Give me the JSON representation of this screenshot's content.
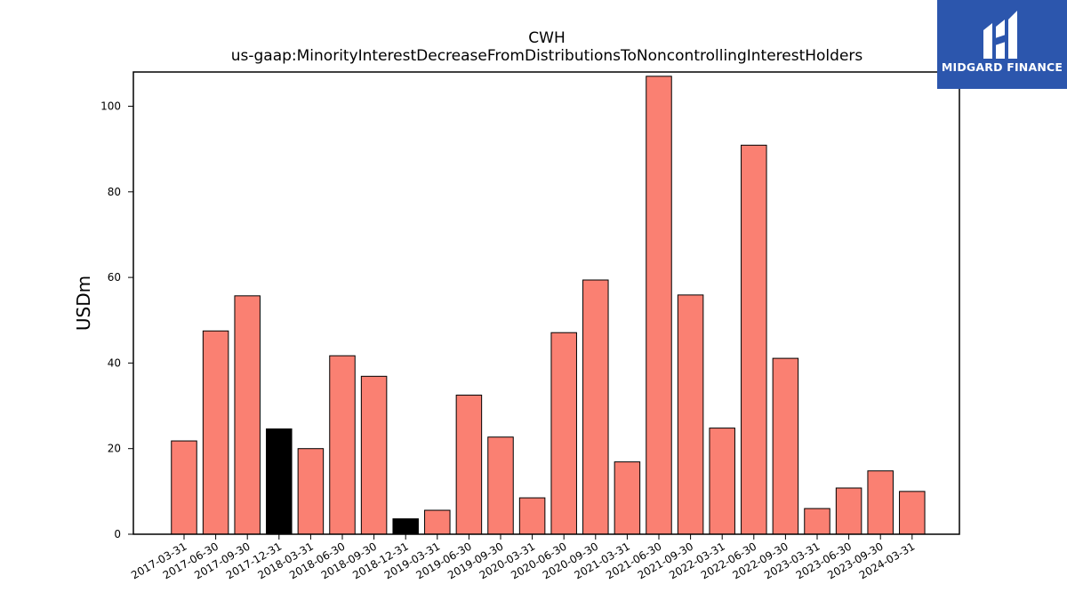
{
  "chart_data": {
    "type": "bar",
    "title": "CWH",
    "subtitle": "us-gaap:MinorityInterestDecreaseFromDistributionsToNoncontrollingInterestHolders",
    "xlabel": "",
    "ylabel": "USDm",
    "ylim": [
      0,
      108
    ],
    "yticks": [
      0,
      20,
      40,
      60,
      80,
      100
    ],
    "grid": false,
    "categories": [
      "2017-03-31",
      "2017-06-30",
      "2017-09-30",
      "2017-12-31",
      "2018-03-31",
      "2018-06-30",
      "2018-09-30",
      "2018-12-31",
      "2019-03-31",
      "2019-06-30",
      "2019-09-30",
      "2020-03-31",
      "2020-06-30",
      "2020-09-30",
      "2021-03-31",
      "2021-06-30",
      "2021-09-30",
      "2022-03-31",
      "2022-06-30",
      "2022-09-30",
      "2023-03-31",
      "2023-06-30",
      "2023-09-30",
      "2024-03-31"
    ],
    "values": [
      21.8,
      47.5,
      55.7,
      24.6,
      20.0,
      41.7,
      36.9,
      3.6,
      5.6,
      32.5,
      22.7,
      8.5,
      47.1,
      59.4,
      16.9,
      107.0,
      55.9,
      24.8,
      90.9,
      41.1,
      6.0,
      10.8,
      14.8,
      10.0
    ],
    "highlight_indices": [
      3,
      7
    ],
    "colors": {
      "bar": "#fa8072",
      "highlight": "#000000",
      "edge": "#000000"
    }
  },
  "logo": {
    "text": "MIDGARD FINANCE",
    "background": "#2c56ad"
  }
}
